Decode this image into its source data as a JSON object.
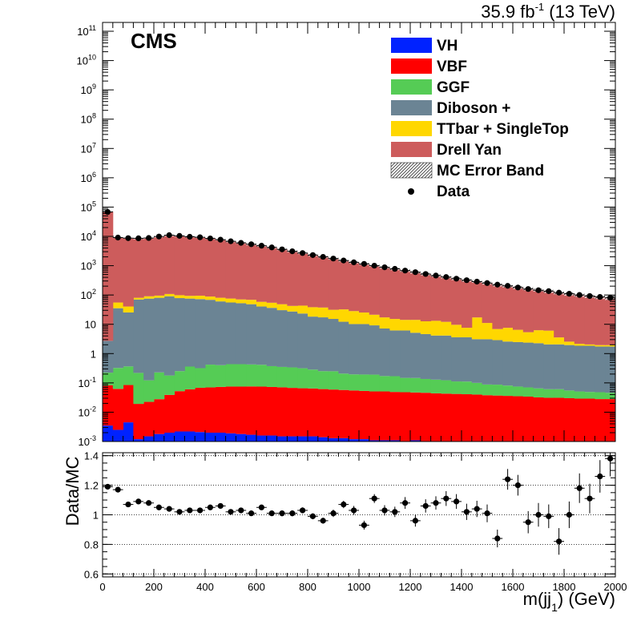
{
  "chart_data": {
    "type": "bar",
    "stacked": true,
    "y_scale": "log",
    "header": {
      "experiment": "CMS",
      "lumi_text": "35.9 fb",
      "lumi_sup": "-1",
      "energy_text": " (13 TeV)"
    },
    "xlabel_main": "m(jj",
    "xlabel_sub": "1",
    "xlabel_unit": ") (GeV)",
    "ratio_ylabel": "Data/MC",
    "xlim": [
      0,
      2000
    ],
    "ylim": [
      0.001,
      200000000000
    ],
    "ratio_ylim": [
      0.58,
      1.42
    ],
    "x_ticks": [
      "0",
      "200",
      "400",
      "600",
      "800",
      "1000",
      "1200",
      "1400",
      "1600",
      "1800",
      "2000"
    ],
    "y_ticks": [
      {
        "base": "10",
        "exp": "11"
      },
      {
        "base": "10",
        "exp": "10"
      },
      {
        "base": "10",
        "exp": "9"
      },
      {
        "base": "10",
        "exp": "8"
      },
      {
        "base": "10",
        "exp": "7"
      },
      {
        "base": "10",
        "exp": "6"
      },
      {
        "base": "10",
        "exp": "5"
      },
      {
        "base": "10",
        "exp": "4"
      },
      {
        "base": "10",
        "exp": "3"
      },
      {
        "base": "10",
        "exp": "2"
      },
      {
        "base": "10",
        "exp": ""
      },
      {
        "base": "1",
        "exp": ""
      },
      {
        "base": "10",
        "exp": "-1"
      },
      {
        "base": "10",
        "exp": "-2"
      },
      {
        "base": "10",
        "exp": "-3"
      }
    ],
    "ratio_ticks": [
      "0.6",
      "0.8",
      "1",
      "1.2",
      "1.4"
    ],
    "bin_edges_start": 0,
    "bin_width": 40,
    "series": [
      {
        "name": "VH",
        "color": "#0022ff",
        "values": [
          0.0035,
          0.0025,
          0.0045,
          0.0012,
          0.0015,
          0.0018,
          0.002,
          0.0022,
          0.0022,
          0.0021,
          0.002,
          0.002,
          0.0019,
          0.0018,
          0.0017,
          0.0016,
          0.0016,
          0.0015,
          0.0015,
          0.0015,
          0.0015,
          0.0014,
          0.0013,
          0.0013,
          0.0012,
          0.0012,
          0.0011,
          0.0011,
          0.0011,
          0.001,
          0.0011,
          0.001,
          0.001,
          0.001,
          0.001,
          0.001,
          0.001,
          0.001,
          0.001,
          0.001,
          0.001,
          0.001,
          0.001,
          0.001,
          0.001,
          0.001,
          0.001,
          0.001,
          0.001,
          0.001
        ]
      },
      {
        "name": "VBF",
        "color": "#ff0000",
        "values": [
          0.08,
          0.06,
          0.08,
          0.018,
          0.021,
          0.026,
          0.037,
          0.05,
          0.058,
          0.066,
          0.068,
          0.071,
          0.073,
          0.073,
          0.074,
          0.073,
          0.071,
          0.069,
          0.066,
          0.064,
          0.063,
          0.06,
          0.058,
          0.056,
          0.054,
          0.052,
          0.05,
          0.05,
          0.048,
          0.047,
          0.046,
          0.045,
          0.043,
          0.042,
          0.041,
          0.04,
          0.039,
          0.037,
          0.036,
          0.035,
          0.034,
          0.033,
          0.031,
          0.03,
          0.03,
          0.029,
          0.028,
          0.028,
          0.027,
          0.027
        ]
      },
      {
        "name": "GGF",
        "color": "#55cc55",
        "values": [
          0.14,
          0.26,
          0.28,
          0.2,
          0.1,
          0.2,
          0.14,
          0.2,
          0.3,
          0.25,
          0.35,
          0.33,
          0.36,
          0.36,
          0.35,
          0.34,
          0.3,
          0.28,
          0.27,
          0.25,
          0.22,
          0.19,
          0.19,
          0.15,
          0.14,
          0.14,
          0.14,
          0.12,
          0.12,
          0.1,
          0.1,
          0.09,
          0.085,
          0.08,
          0.07,
          0.07,
          0.06,
          0.05,
          0.05,
          0.045,
          0.04,
          0.036,
          0.033,
          0.03,
          0.03,
          0.025,
          0.022,
          0.02,
          0.02,
          0.018
        ]
      },
      {
        "name": "Diboson +",
        "color": "#6b8494",
        "values": [
          2.5,
          35,
          25,
          70,
          75,
          80,
          90,
          78,
          75,
          72,
          68,
          60,
          55,
          52,
          48,
          40,
          36,
          30,
          27,
          23,
          18,
          17,
          15,
          12,
          10,
          10,
          9,
          7,
          6,
          6,
          5,
          4.5,
          4,
          4,
          3.5,
          3.5,
          3,
          3,
          2.8,
          2.5,
          2.4,
          2.3,
          2.2,
          2,
          2,
          1.9,
          1.8,
          1.8,
          1.7,
          1.7
        ]
      },
      {
        "name": "TTbar + SingleTop",
        "color": "#ffd700",
        "values": [
          0,
          20,
          15,
          10,
          15,
          15,
          18,
          20,
          18,
          22,
          20,
          20,
          20,
          18,
          20,
          18,
          18,
          18,
          15,
          20,
          20,
          20,
          16,
          20,
          18,
          15,
          12,
          10,
          9,
          8,
          9,
          8,
          9,
          8,
          6,
          4,
          14,
          8,
          4,
          5,
          4,
          3,
          4,
          4,
          1.5,
          0.6,
          0.3,
          0.2,
          0.2,
          0.2
        ]
      },
      {
        "name": "Drell Yan",
        "color": "#cd5c5c",
        "values": [
          70000,
          9000,
          8600,
          8200,
          8500,
          9500,
          10500,
          10200,
          9600,
          9200,
          8400,
          7600,
          6600,
          5900,
          5200,
          4700,
          4100,
          3550,
          3050,
          2650,
          2250,
          1960,
          1720,
          1470,
          1280,
          1120,
          980,
          860,
          760,
          660,
          580,
          505,
          445,
          395,
          350,
          310,
          275,
          245,
          215,
          195,
          175,
          158,
          143,
          128,
          116,
          106,
          97,
          89,
          82,
          76
        ]
      }
    ],
    "error_band": {
      "name": "MC Error Band",
      "color": "#555555"
    },
    "data": {
      "name": "Data",
      "values": [
        68000,
        9100,
        8700,
        8600,
        8800,
        9900,
        11000,
        10400,
        9700,
        9300,
        8500,
        7700,
        6800,
        6000,
        5400,
        4800,
        4200,
        3600,
        3100,
        2700,
        2300,
        2000,
        1750,
        1500,
        1300,
        1150,
        1000,
        880,
        780,
        680,
        600,
        520,
        460,
        410,
        360,
        320,
        285,
        255,
        225,
        205,
        180,
        160,
        145,
        135,
        120,
        110,
        100,
        92,
        86,
        80
      ]
    },
    "ratio": {
      "values": [
        1.19,
        1.17,
        1.07,
        1.09,
        1.08,
        1.05,
        1.04,
        1.02,
        1.03,
        1.03,
        1.05,
        1.06,
        1.02,
        1.03,
        1.01,
        1.05,
        1.01,
        1.01,
        1.01,
        1.03,
        0.99,
        0.96,
        1.01,
        1.07,
        1.03,
        0.93,
        1.11,
        1.03,
        1.02,
        1.08,
        0.96,
        1.06,
        1.08,
        1.11,
        1.09,
        1.02,
        1.04,
        1.01,
        0.84,
        1.24,
        1.2,
        0.95,
        1.0,
        0.99,
        0.82,
        1.0,
        1.18,
        1.11,
        1.26,
        1.38
      ],
      "errors": [
        0.01,
        0.01,
        0.01,
        0.01,
        0.01,
        0.01,
        0.01,
        0.01,
        0.01,
        0.01,
        0.01,
        0.01,
        0.01,
        0.015,
        0.015,
        0.015,
        0.015,
        0.02,
        0.02,
        0.02,
        0.02,
        0.02,
        0.025,
        0.025,
        0.03,
        0.03,
        0.03,
        0.035,
        0.035,
        0.04,
        0.04,
        0.045,
        0.045,
        0.05,
        0.05,
        0.055,
        0.055,
        0.06,
        0.06,
        0.07,
        0.07,
        0.075,
        0.08,
        0.08,
        0.09,
        0.09,
        0.1,
        0.1,
        0.11,
        0.12
      ]
    }
  }
}
